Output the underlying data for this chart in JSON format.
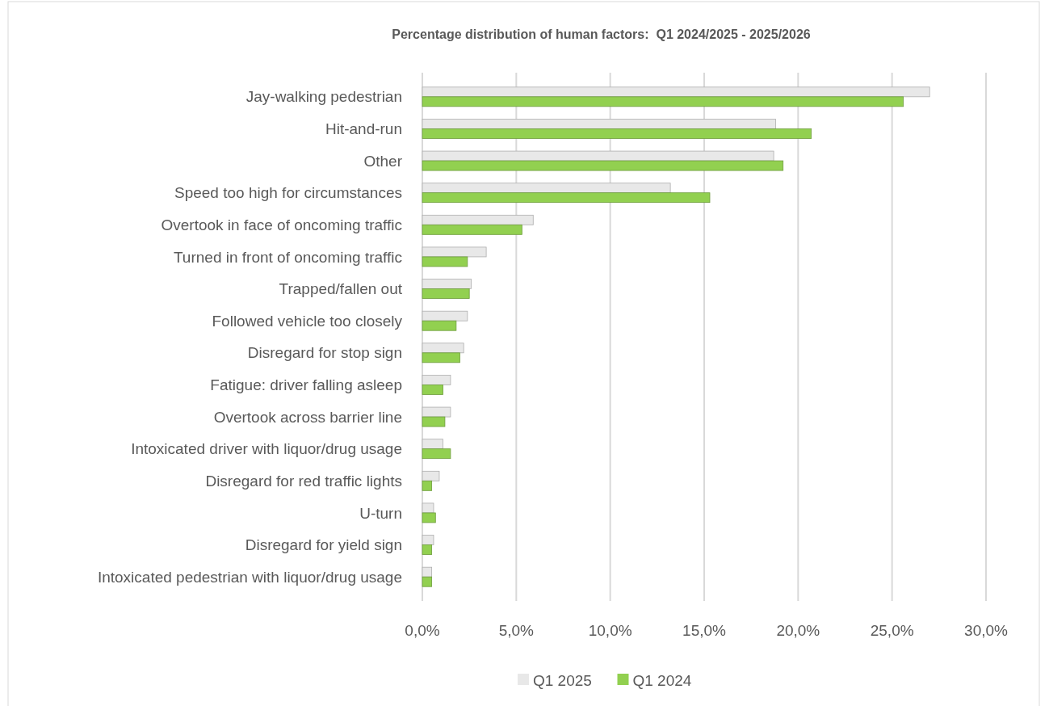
{
  "chart_data": {
    "type": "bar",
    "orientation": "horizontal",
    "title": "Percentage distribution of human factors:  Q1 2024/2025 - 2025/2026",
    "categories": [
      "Jay-walking pedestrian",
      "Hit-and-run",
      "Other",
      "Speed too high for circumstances",
      "Overtook in face of oncoming traffic",
      "Turned in front of oncoming traffic",
      "Trapped/fallen out",
      "Followed vehicle too closely",
      "Disregard for stop sign",
      "Fatigue: driver falling asleep",
      "Overtook across barrier line",
      "Intoxicated driver with liquor/drug usage",
      "Disregard for red traffic lights",
      "U-turn",
      "Disregard for yield sign",
      "Intoxicated pedestrian with liquor/drug usage"
    ],
    "series": [
      {
        "name": "Q1 2025",
        "color": "#e8e8e8",
        "values": [
          27.0,
          18.8,
          18.7,
          13.2,
          5.9,
          3.4,
          2.6,
          2.4,
          2.2,
          1.5,
          1.5,
          1.1,
          0.9,
          0.6,
          0.6,
          0.5
        ]
      },
      {
        "name": "Q1 2024",
        "color": "#92d050",
        "values": [
          25.6,
          20.7,
          19.2,
          15.3,
          5.3,
          2.4,
          2.5,
          1.8,
          2.0,
          1.1,
          1.2,
          1.5,
          0.5,
          0.7,
          0.5,
          0.5
        ]
      }
    ],
    "xlim": [
      0,
      30
    ],
    "xticks": [
      {
        "value": 0,
        "label": "0,0%"
      },
      {
        "value": 5,
        "label": "5,0%"
      },
      {
        "value": 10,
        "label": "10,0%"
      },
      {
        "value": 15,
        "label": "15,0%"
      },
      {
        "value": 20,
        "label": "20,0%"
      },
      {
        "value": 25,
        "label": "25,0%"
      },
      {
        "value": 30,
        "label": "30,0%"
      }
    ],
    "grid": "x",
    "legend": "bottom"
  }
}
